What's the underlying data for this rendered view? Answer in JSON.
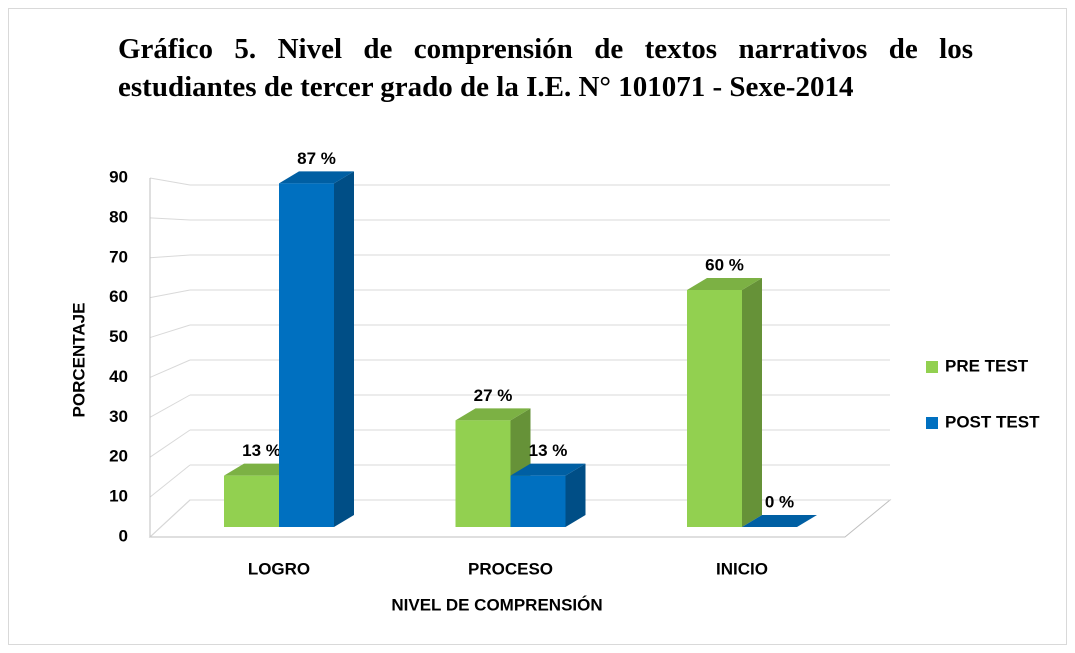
{
  "chart_data": {
    "type": "bar3d",
    "title": "Gráfico 5. Nivel de comprensión de textos narrativos de los estudiantes de tercer grado de la I.E. N° 101071 - Sexe-2014",
    "xlabel": "NIVEL DE COMPRENSIÓN",
    "ylabel": "PORCENTAJE",
    "categories": [
      "LOGRO",
      "PROCESO",
      "INICIO"
    ],
    "series": [
      {
        "name": "PRE TEST",
        "color": "#92d050",
        "values": [
          13,
          27,
          60
        ],
        "value_labels": [
          "13 %",
          "27 %",
          "60 %"
        ]
      },
      {
        "name": "POST TEST",
        "color": "#0070c0",
        "values": [
          87,
          13,
          0
        ],
        "value_labels": [
          "87 %",
          "13 %",
          "0 %"
        ]
      }
    ],
    "ylim": [
      0,
      90
    ],
    "yticks": [
      0,
      10,
      20,
      30,
      40,
      50,
      60,
      70,
      80,
      90
    ],
    "grid": true,
    "legend": "right"
  }
}
